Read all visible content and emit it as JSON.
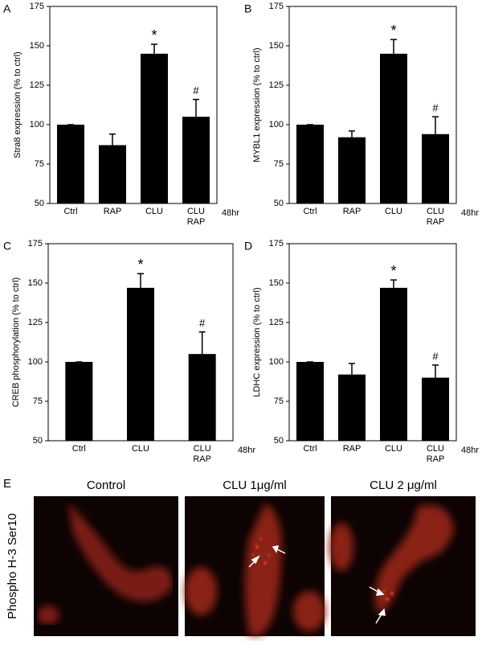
{
  "chart_data": [
    {
      "type": "bar",
      "panel_label": "A",
      "ylabel": "Stra8 expression (% to ctrl)",
      "categories": [
        "Ctrl",
        "RAP",
        "CLU",
        "CLU RAP"
      ],
      "values": [
        100,
        87,
        145,
        105
      ],
      "errors": [
        0,
        7,
        6,
        11
      ],
      "markers": [
        null,
        null,
        "*",
        "#"
      ],
      "x_note": "48hr",
      "color": "#000000",
      "ylim": [
        50,
        175
      ],
      "yticks": [
        50,
        75,
        100,
        125,
        150,
        175
      ]
    },
    {
      "type": "bar",
      "panel_label": "B",
      "ylabel": "MYBL1 expression (% to ctrl)",
      "categories": [
        "Ctrl",
        "RAP",
        "CLU",
        "CLU RAP"
      ],
      "values": [
        100,
        92,
        145,
        94
      ],
      "errors": [
        0,
        4,
        9,
        11
      ],
      "markers": [
        null,
        null,
        "*",
        "#"
      ],
      "x_note": "48hr",
      "color": "#000000",
      "ylim": [
        50,
        175
      ],
      "yticks": [
        50,
        75,
        100,
        125,
        150,
        175
      ]
    },
    {
      "type": "bar",
      "panel_label": "C",
      "ylabel": "CREB phosphorylation (% to ctrl)",
      "categories": [
        "Ctrl",
        "CLU",
        "CLU RAP"
      ],
      "values": [
        100,
        147,
        105
      ],
      "errors": [
        0,
        9,
        14
      ],
      "markers": [
        null,
        "*",
        "#"
      ],
      "x_note": "48hr",
      "color": "#000000",
      "ylim": [
        50,
        175
      ],
      "yticks": [
        50,
        75,
        100,
        125,
        150,
        175
      ]
    },
    {
      "type": "bar",
      "panel_label": "D",
      "ylabel": "LDHC expression (% to ctrl)",
      "categories": [
        "Ctrl",
        "RAP",
        "CLU",
        "CLU RAP"
      ],
      "values": [
        100,
        92,
        147,
        90
      ],
      "errors": [
        0,
        7,
        5,
        8
      ],
      "markers": [
        null,
        null,
        "*",
        "#"
      ],
      "x_note": "48hr",
      "color": "#000000",
      "ylim": [
        50,
        175
      ],
      "yticks": [
        50,
        75,
        100,
        125,
        150,
        175
      ]
    }
  ],
  "figure_e": {
    "panel_label": "E",
    "ylabel": "Phospho H-3 Ser10",
    "images": [
      "Control",
      "CLU 1μg/ml",
      "CLU 2 μg/ml"
    ]
  }
}
